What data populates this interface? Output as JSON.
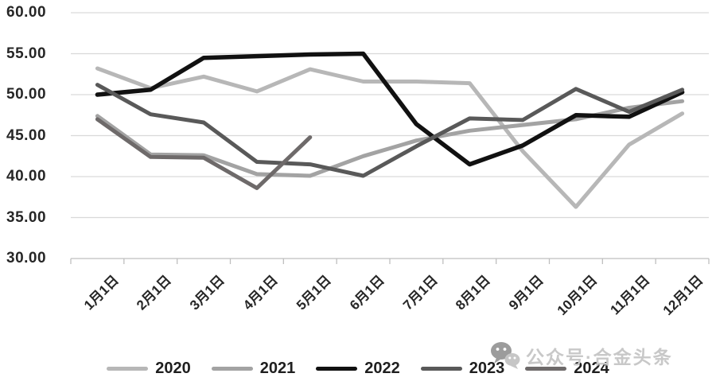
{
  "watermark": {
    "text": "公众号·合金头条",
    "icon": "wechat-icon",
    "color": "#c8c8c8"
  },
  "chart_data": {
    "type": "line",
    "title": "",
    "xlabel": "",
    "ylabel": "",
    "categories": [
      "1月1日",
      "2月1日",
      "3月1日",
      "4月1日",
      "5月1日",
      "6月1日",
      "7月1日",
      "8月1日",
      "9月1日",
      "10月1日",
      "11月1日",
      "12月1日"
    ],
    "series": [
      {
        "name": "2020",
        "color": "#b7b7b7",
        "values": [
          53.2,
          50.8,
          52.2,
          50.4,
          53.1,
          51.6,
          51.6,
          51.4,
          43.1,
          36.3,
          43.9,
          47.7
        ]
      },
      {
        "name": "2021",
        "color": "#a3a3a3",
        "values": [
          47.4,
          42.7,
          42.6,
          40.3,
          40.1,
          42.5,
          44.4,
          45.6,
          46.3,
          47.0,
          48.4,
          49.2
        ]
      },
      {
        "name": "2022",
        "color": "#111111",
        "values": [
          50.0,
          50.6,
          54.5,
          54.7,
          54.9,
          55.0,
          46.4,
          41.5,
          43.8,
          47.5,
          47.3,
          50.3
        ]
      },
      {
        "name": "2023",
        "color": "#595959",
        "values": [
          51.2,
          47.6,
          46.6,
          41.8,
          41.5,
          40.1,
          43.7,
          47.1,
          46.9,
          50.7,
          47.9,
          50.6
        ]
      },
      {
        "name": "2024",
        "color": "#6e6a6a",
        "values": [
          47.0,
          42.4,
          42.3,
          38.6,
          44.8
        ]
      }
    ],
    "ylim": [
      30,
      60
    ],
    "ytick_step": 5,
    "ytick_labels": [
      "60.00",
      "55.00",
      "50.00",
      "45.00",
      "40.00",
      "35.00",
      "30.00"
    ],
    "grid": true,
    "grid_color": "#d9d9d9",
    "axis_color": "#bfbfbf",
    "label_color": "#262626",
    "legend_position": "bottom"
  }
}
